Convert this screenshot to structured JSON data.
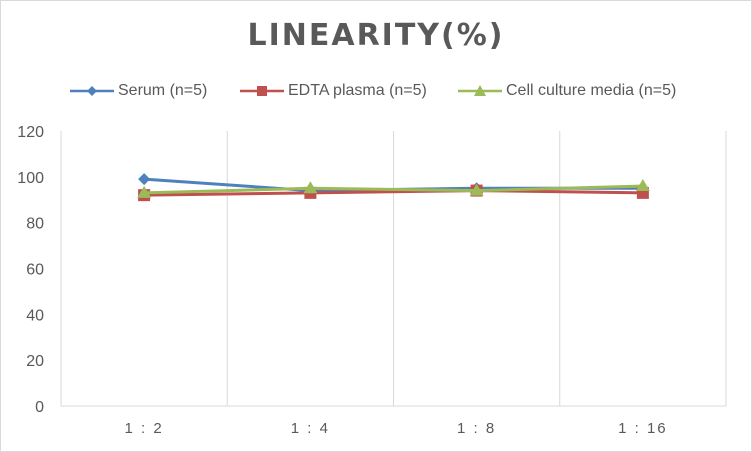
{
  "chart_data": {
    "type": "line",
    "title": "LINEARITY(%)",
    "categories": [
      "1:2",
      "1:4",
      "1:8",
      "1:16"
    ],
    "series": [
      {
        "name": "Serum (n=5)",
        "color": "#4f81bd",
        "marker": "diamond",
        "values": [
          99,
          94,
          95,
          95
        ]
      },
      {
        "name": "EDTA plasma (n=5)",
        "color": "#c0504d",
        "marker": "square",
        "values": [
          92,
          93,
          94,
          93
        ]
      },
      {
        "name": "Cell culture media (n=5)",
        "color": "#9bbb59",
        "marker": "triangle",
        "values": [
          93,
          95,
          94,
          96
        ]
      }
    ],
    "ylim": [
      0,
      120
    ],
    "yticks": [
      0,
      20,
      40,
      60,
      80,
      100,
      120
    ],
    "xlabel": "",
    "ylabel": "",
    "grid": true,
    "legend_position": "top"
  }
}
